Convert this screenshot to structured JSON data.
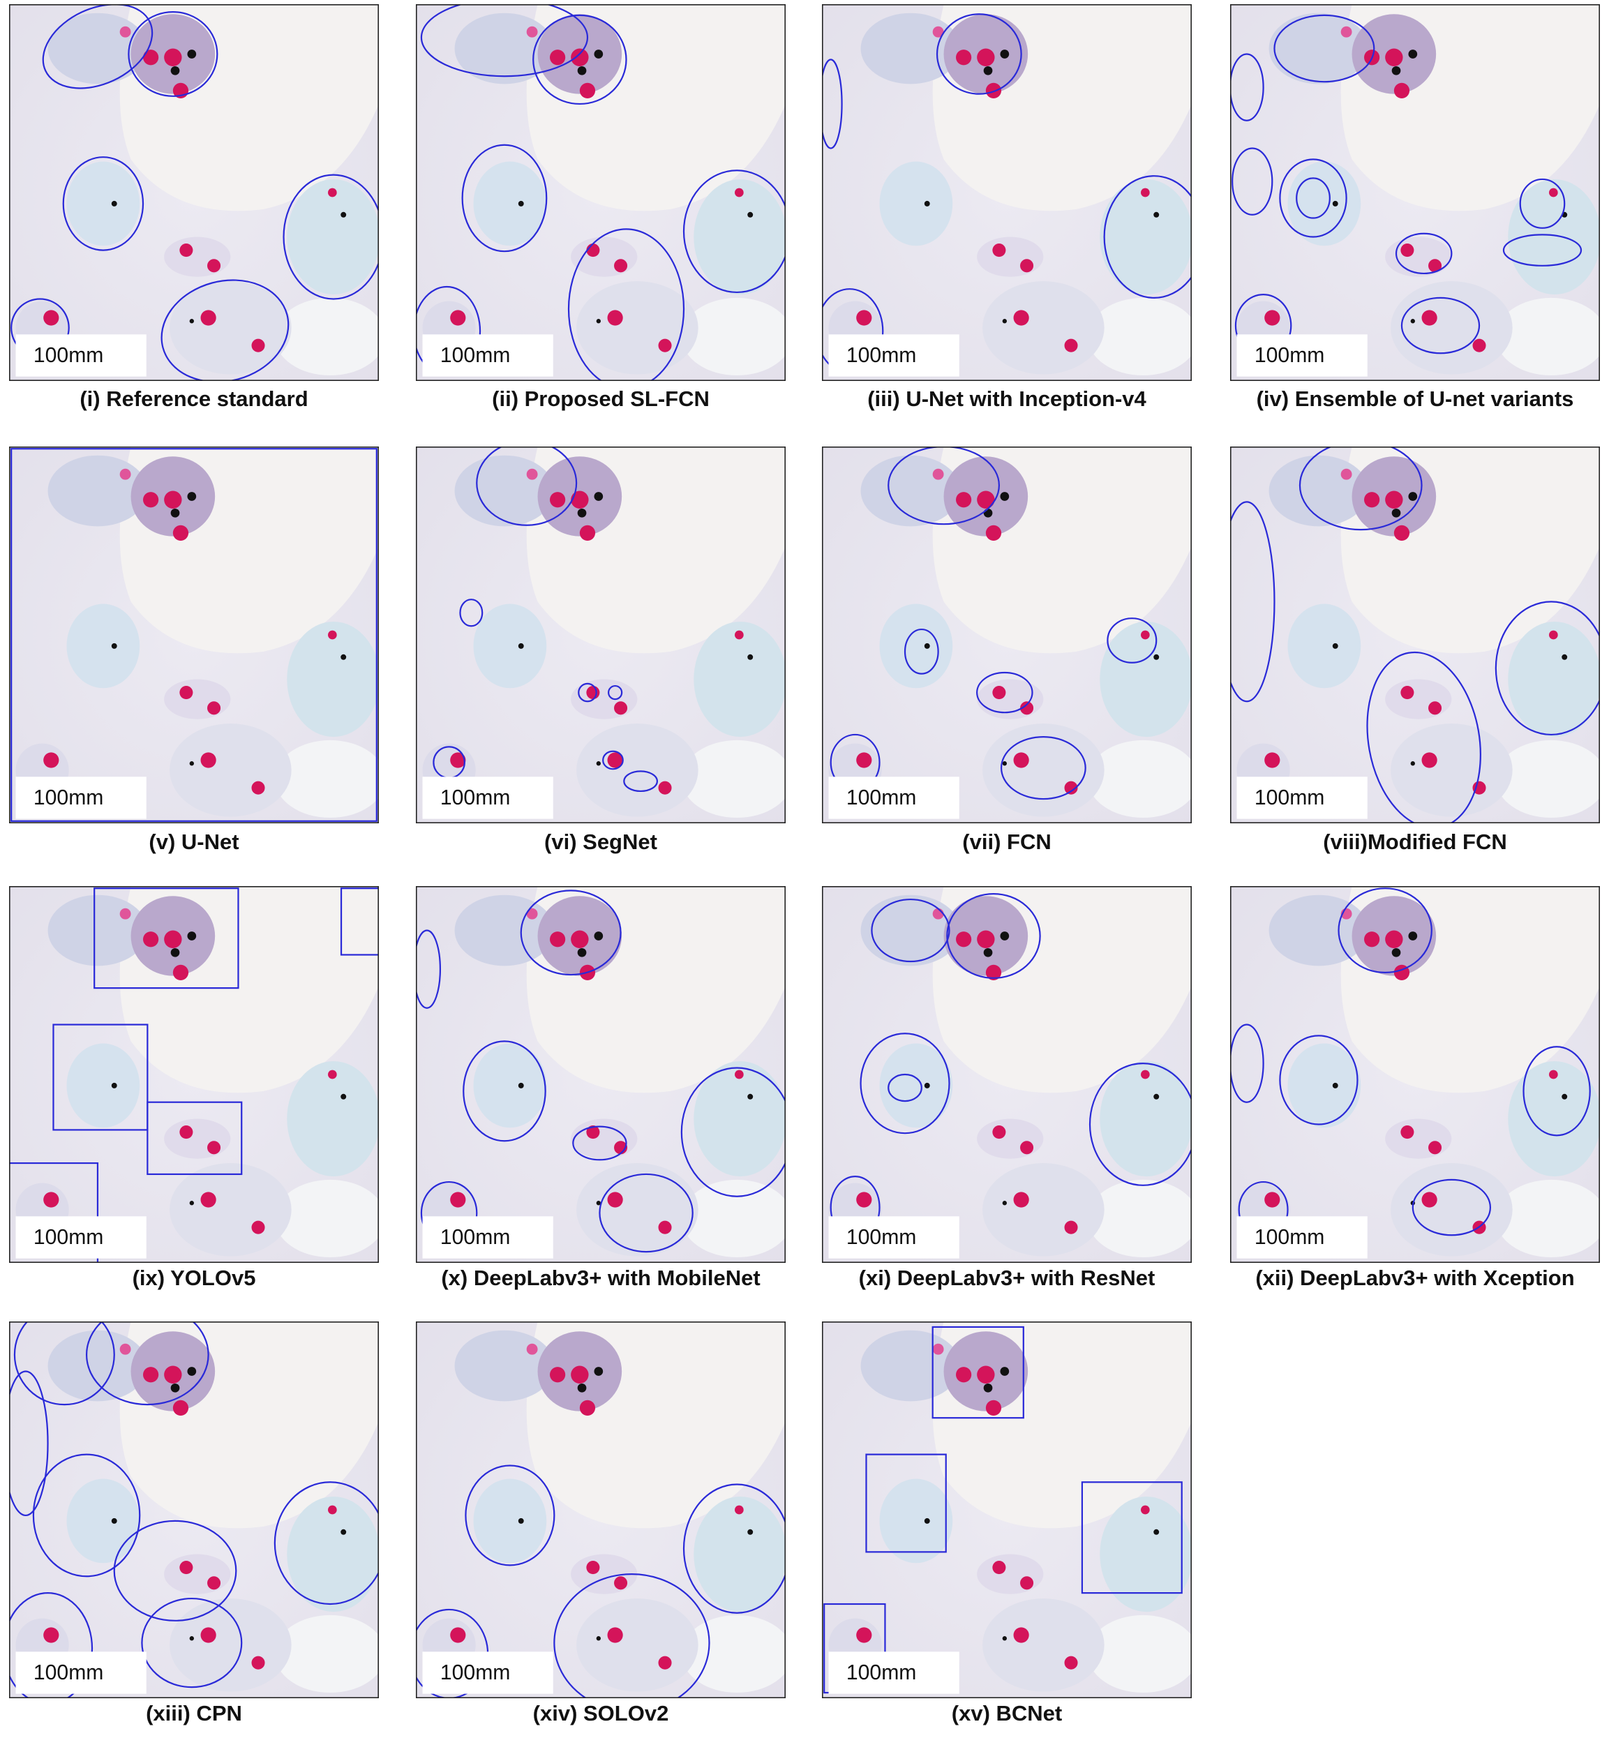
{
  "panels": [
    {
      "caption": "(i) Reference standard",
      "scale_label": "100mm"
    },
    {
      "caption": "(ii) Proposed SL-FCN",
      "scale_label": "100mm"
    },
    {
      "caption": "(iii) U-Net with Inception-v4",
      "scale_label": "100mm"
    },
    {
      "caption": "(iv) Ensemble of U-net variants",
      "scale_label": "100mm"
    },
    {
      "caption": "(v) U-Net",
      "scale_label": "100mm"
    },
    {
      "caption": "(vi) SegNet",
      "scale_label": "100mm"
    },
    {
      "caption": "(vii) FCN",
      "scale_label": "100mm"
    },
    {
      "caption": "(viii)Modified FCN",
      "scale_label": "100mm"
    },
    {
      "caption": "(ix) YOLOv5",
      "scale_label": "100mm"
    },
    {
      "caption": "(x) DeepLabv3+ with MobileNet",
      "scale_label": "100mm"
    },
    {
      "caption": "(xi) DeepLabv3+ with ResNet",
      "scale_label": "100mm"
    },
    {
      "caption": "(xii) DeepLabv3+ with Xception",
      "scale_label": "100mm"
    },
    {
      "caption": "(xiii) CPN",
      "scale_label": "100mm"
    },
    {
      "caption": "(xiv) SOLOv2",
      "scale_label": "100mm"
    },
    {
      "caption": "(xv) BCNet",
      "scale_label": "100mm"
    }
  ]
}
